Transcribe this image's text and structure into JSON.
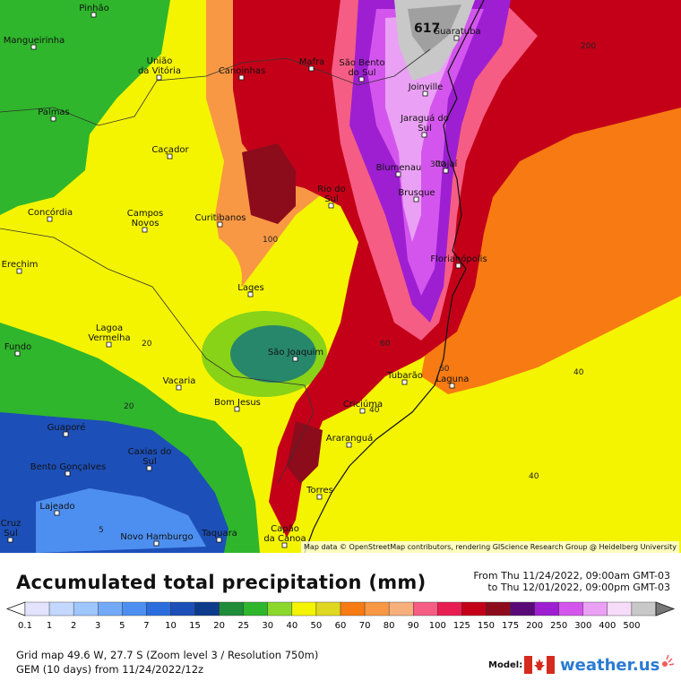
{
  "map": {
    "cities": [
      {
        "name": "Pinhão"
      },
      {
        "name": "Mangueirinha"
      },
      {
        "name": "União\nda Vitória"
      },
      {
        "name": "Canoinhas"
      },
      {
        "name": "Mafra"
      },
      {
        "name": "São Bento\ndo Sul"
      },
      {
        "name": "Guaratuba"
      },
      {
        "name": "Joinville"
      },
      {
        "name": "Palmas"
      },
      {
        "name": "Jaraguá do\nSul"
      },
      {
        "name": "Caçador"
      },
      {
        "name": "Blumenau"
      },
      {
        "name": "Itajaí"
      },
      {
        "name": "Brusque"
      },
      {
        "name": "Rio do\nSul"
      },
      {
        "name": "Concórdia"
      },
      {
        "name": "Campos\nNovos"
      },
      {
        "name": "Curitibanos"
      },
      {
        "name": "Florianópolis"
      },
      {
        "name": "Erechim"
      },
      {
        "name": "Lages"
      },
      {
        "name": "Lagoa\nVermelha"
      },
      {
        "name": "São Joaquim"
      },
      {
        "name": "Fundo"
      },
      {
        "name": "Tubarão"
      },
      {
        "name": "Laguna"
      },
      {
        "name": "Vacaria"
      },
      {
        "name": "Bom Jesus"
      },
      {
        "name": "Criciúma"
      },
      {
        "name": "Guaporé"
      },
      {
        "name": "Araranguá"
      },
      {
        "name": "Caxias do\nSul"
      },
      {
        "name": "Bento Gonçalves"
      },
      {
        "name": "Torres"
      },
      {
        "name": "Lajeado"
      },
      {
        "name": "Cruz\nSul"
      },
      {
        "name": "Novo Hamburgo"
      },
      {
        "name": "Taquara"
      },
      {
        "name": "Capão\nda Canoa"
      }
    ],
    "contour_labels": [
      {
        "text": "200"
      },
      {
        "text": "300"
      },
      {
        "text": "100"
      },
      {
        "text": "20"
      },
      {
        "text": "20"
      },
      {
        "text": "60"
      },
      {
        "text": "60"
      },
      {
        "text": "40"
      },
      {
        "text": "40"
      },
      {
        "text": "40"
      },
      {
        "text": "5"
      }
    ],
    "max_value_label": "617",
    "attribution": "Map data © OpenStreetMap contributors, rendering GIScience Research Group @ Heidelberg University"
  },
  "header": {
    "title": "Accumulated total precipitation (mm)",
    "from": "From Thu 11/24/2022, 09:00am GMT-03",
    "to": "to Thu 12/01/2022, 09:00pm GMT-03"
  },
  "legend": {
    "unit": "mm",
    "bins": [
      {
        "label": "0.1",
        "color": "#e3e3ff"
      },
      {
        "label": "1",
        "color": "#c4d7ff"
      },
      {
        "label": "2",
        "color": "#9ec6ff"
      },
      {
        "label": "3",
        "color": "#72aaf7"
      },
      {
        "label": "5",
        "color": "#4d8ff0"
      },
      {
        "label": "7",
        "color": "#2b6ddd"
      },
      {
        "label": "10",
        "color": "#1d4fb8"
      },
      {
        "label": "15",
        "color": "#0e3a8c"
      },
      {
        "label": "20",
        "color": "#1f8c3a"
      },
      {
        "label": "25",
        "color": "#2fb62c"
      },
      {
        "label": "30",
        "color": "#8bd82c"
      },
      {
        "label": "40",
        "color": "#f4f400"
      },
      {
        "label": "50",
        "color": "#e0d820"
      },
      {
        "label": "60",
        "color": "#f77a12"
      },
      {
        "label": "70",
        "color": "#f99844"
      },
      {
        "label": "80",
        "color": "#f7b07c"
      },
      {
        "label": "90",
        "color": "#f65d84"
      },
      {
        "label": "100",
        "color": "#e81e52"
      },
      {
        "label": "125",
        "color": "#c40018"
      },
      {
        "label": "150",
        "color": "#8c0c1c"
      },
      {
        "label": "175",
        "color": "#5a0a78"
      },
      {
        "label": "200",
        "color": "#9d1fd1"
      },
      {
        "label": "250",
        "color": "#d455ee"
      },
      {
        "label": "300",
        "color": "#eaa0f4"
      },
      {
        "label": "400",
        "color": "#f6dcf8"
      },
      {
        "label": "500",
        "color": "#c8c8c8"
      }
    ]
  },
  "footer": {
    "grid": "Grid map 49.6 W, 27.7 S (Zoom level 3 / Resolution 750m)",
    "model": "GEM (10 days) from  11/24/2022/12z",
    "model_label": "Model:",
    "brand": "weather.us"
  }
}
